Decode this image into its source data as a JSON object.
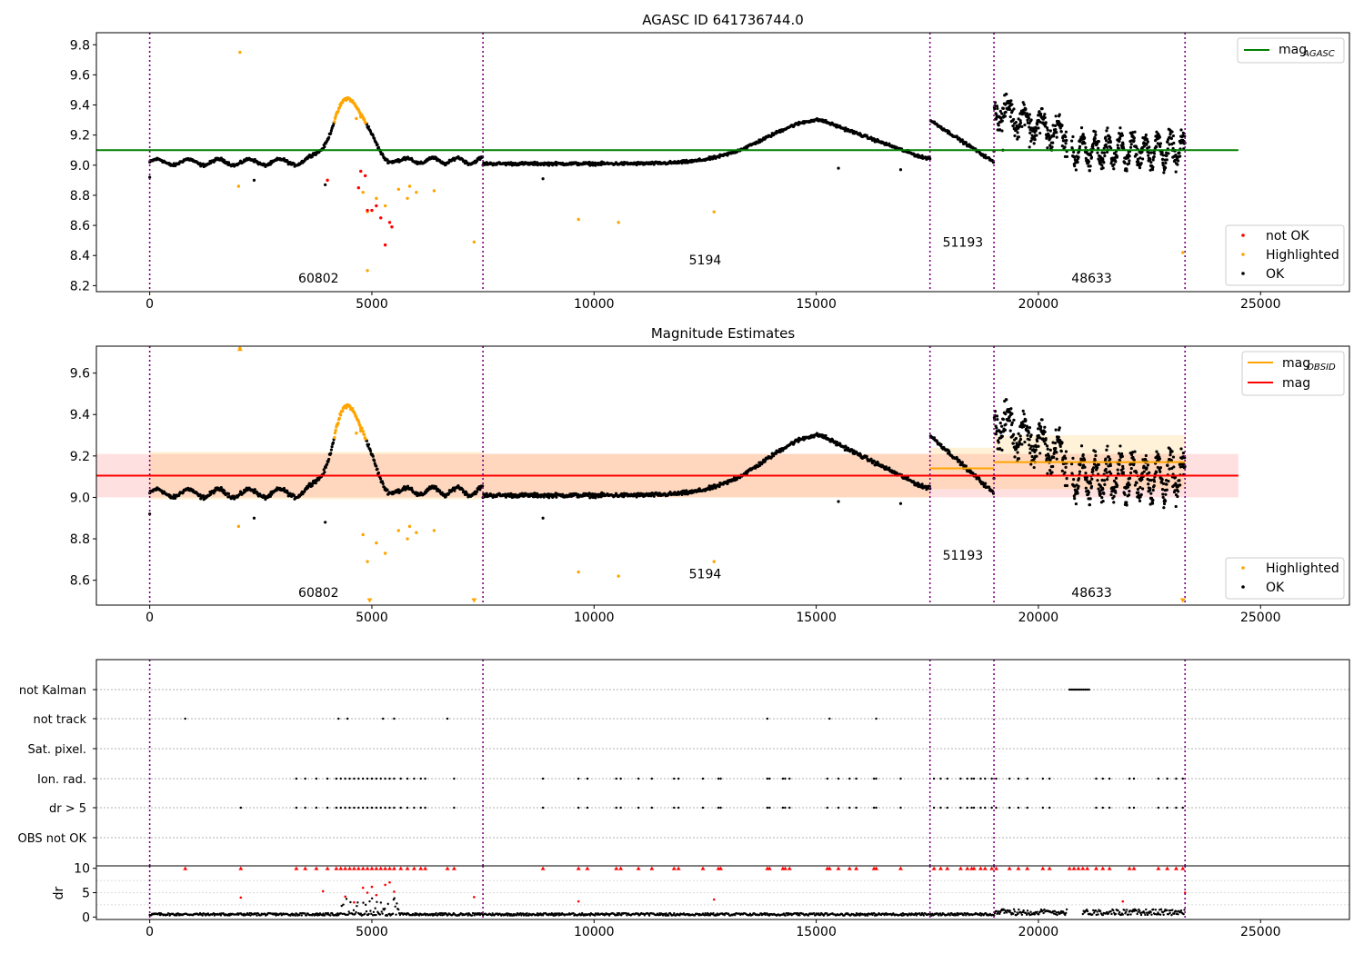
{
  "chart_data": [
    {
      "type": "scatter",
      "title": "AGASC ID 641736744.0",
      "xlim": [
        -1200,
        27000
      ],
      "ylim": [
        8.16,
        9.88
      ],
      "xticks": [
        "0",
        "5000",
        "10000",
        "15000",
        "20000",
        "25000"
      ],
      "xtick_values": [
        0,
        5000,
        10000,
        15000,
        20000,
        25000
      ],
      "yticks": [
        "8.2",
        "8.4",
        "8.6",
        "8.8",
        "9.0",
        "9.2",
        "9.4",
        "9.6",
        "9.8"
      ],
      "ytick_values": [
        8.2,
        8.4,
        8.6,
        8.8,
        9.0,
        9.2,
        9.4,
        9.6,
        9.8
      ],
      "obsid_boundaries": [
        0,
        7500,
        17560,
        19000,
        23300
      ],
      "obsid_labels": [
        {
          "text": "60802",
          "x": 3800,
          "y": 8.22
        },
        {
          "text": "5194",
          "x": 12500,
          "y": 8.34
        },
        {
          "text": "51193",
          "x": 18300,
          "y": 8.46
        },
        {
          "text": "48633",
          "x": 21200,
          "y": 8.22
        }
      ],
      "mag_agasc": 9.1,
      "mag_agasc_range": [
        -1200,
        24500
      ],
      "legend_lines": [
        {
          "label": "mag",
          "sub": "AGASC",
          "color": "#008000"
        }
      ],
      "legend_points": [
        {
          "label": "not OK",
          "color": "#ff0000"
        },
        {
          "label": "Highlighted",
          "color": "#ffa500"
        },
        {
          "label": "OK",
          "color": "#000000"
        }
      ],
      "legend_lines_position": "top-right",
      "legend_points_position": "bottom-right",
      "highlighted_points": [
        [
          2030,
          9.75
        ],
        [
          2000,
          8.86
        ],
        [
          4900,
          8.3
        ],
        [
          4800,
          8.82
        ],
        [
          4900,
          8.69
        ],
        [
          5100,
          8.78
        ],
        [
          5300,
          8.73
        ],
        [
          5600,
          8.84
        ],
        [
          5800,
          8.78
        ],
        [
          5850,
          8.86
        ],
        [
          6000,
          8.82
        ],
        [
          6400,
          8.83
        ],
        [
          7300,
          8.49
        ],
        [
          9650,
          8.64
        ],
        [
          10550,
          8.62
        ],
        [
          12700,
          8.69
        ],
        [
          23250,
          8.42
        ],
        [
          4650,
          9.31
        ],
        [
          4750,
          9.32
        ]
      ],
      "not_ok_points": [
        [
          4000,
          8.9
        ],
        [
          4700,
          8.85
        ],
        [
          4750,
          8.96
        ],
        [
          4850,
          8.93
        ],
        [
          4900,
          8.7
        ],
        [
          5000,
          8.7
        ],
        [
          5100,
          8.73
        ],
        [
          5200,
          8.65
        ],
        [
          5300,
          8.47
        ],
        [
          5400,
          8.62
        ],
        [
          5450,
          8.59
        ]
      ],
      "ok_outliers": [
        [
          0,
          8.92
        ],
        [
          2350,
          8.9
        ],
        [
          3950,
          8.87
        ],
        [
          8850,
          8.91
        ],
        [
          15500,
          8.98
        ],
        [
          16900,
          8.97
        ],
        [
          19200,
          9.1
        ],
        [
          19800,
          9.12
        ],
        [
          20300,
          9.1
        ]
      ]
    },
    {
      "type": "scatter",
      "title": "Magnitude Estimates",
      "xlim": [
        -1200,
        27000
      ],
      "ylim": [
        8.48,
        9.73
      ],
      "xticks": [
        "0",
        "5000",
        "10000",
        "15000",
        "20000",
        "25000"
      ],
      "xtick_values": [
        0,
        5000,
        10000,
        15000,
        20000,
        25000
      ],
      "yticks": [
        "8.6",
        "8.8",
        "9.0",
        "9.2",
        "9.4",
        "9.6"
      ],
      "ytick_values": [
        8.6,
        8.8,
        9.0,
        9.2,
        9.4,
        9.6
      ],
      "obsid_labels": [
        {
          "text": "60802",
          "x": 3800,
          "y": 8.52
        },
        {
          "text": "5194",
          "x": 12500,
          "y": 8.61
        },
        {
          "text": "51193",
          "x": 18300,
          "y": 8.7
        },
        {
          "text": "48633",
          "x": 21200,
          "y": 8.52
        }
      ],
      "mag": 9.105,
      "mag_band": [
        9.0,
        9.21
      ],
      "mag_range": [
        -1200,
        24500
      ],
      "mag_obsid_segments": [
        {
          "x0": 0,
          "x1": 7500,
          "mag": 9.105,
          "band": [
            8.99,
            9.22
          ]
        },
        {
          "x0": 7500,
          "x1": 17560,
          "mag": 9.105,
          "band": [
            9.0,
            9.21
          ]
        },
        {
          "x0": 17560,
          "x1": 19000,
          "mag": 9.14,
          "band": [
            9.04,
            9.24
          ]
        },
        {
          "x0": 19000,
          "x1": 23300,
          "mag": 9.17,
          "band": [
            9.04,
            9.3
          ]
        }
      ],
      "legend_lines": [
        {
          "label": "mag",
          "sub": "OBSID",
          "color": "#ffa500"
        },
        {
          "label": "mag",
          "sub": "",
          "color": "#ff0000"
        }
      ],
      "legend_points": [
        {
          "label": "Highlighted",
          "color": "#ffa500"
        },
        {
          "label": "OK",
          "color": "#000000"
        }
      ],
      "legend_lines_position": "top-right",
      "legend_points_position": "bottom-right",
      "highlighted_points": [
        [
          2030,
          9.72
        ],
        [
          2000,
          8.86
        ],
        [
          4800,
          8.82
        ],
        [
          4900,
          8.69
        ],
        [
          5100,
          8.78
        ],
        [
          5300,
          8.73
        ],
        [
          5600,
          8.84
        ],
        [
          5800,
          8.8
        ],
        [
          5850,
          8.86
        ],
        [
          6000,
          8.83
        ],
        [
          6400,
          8.84
        ],
        [
          9650,
          8.64
        ],
        [
          10550,
          8.62
        ],
        [
          12700,
          8.69
        ],
        [
          4650,
          9.31
        ],
        [
          4750,
          9.32
        ]
      ],
      "off_scale_markers": [
        [
          4950,
          8.5
        ],
        [
          7300,
          8.5
        ],
        [
          23250,
          8.5
        ],
        [
          2030,
          9.72
        ]
      ],
      "ok_outliers": [
        [
          0,
          8.92
        ],
        [
          2350,
          8.9
        ],
        [
          3950,
          8.88
        ],
        [
          8850,
          8.9
        ],
        [
          15500,
          8.98
        ],
        [
          16900,
          8.97
        ]
      ]
    },
    {
      "type": "scatter",
      "title": "",
      "xlim": [
        -1200,
        27000
      ],
      "categories": [
        "not Kalman",
        "not track",
        "Sat. pixel.",
        "Ion. rad.",
        "dr > 5",
        "OBS not OK"
      ],
      "flags": {
        "not Kalman": [
          [
            20700,
            21150
          ]
        ],
        "not track": [
          800,
          4250,
          4450,
          5250,
          5500,
          6700,
          13900,
          15300,
          16350
        ],
        "Sat. pixel.": [],
        "Ion. rad.": [
          3300,
          3500,
          3750,
          4000,
          4200,
          4300,
          4400,
          4500,
          4600,
          4700,
          4800,
          4900,
          5000,
          5100,
          5200,
          5300,
          5400,
          5500,
          5650,
          5800,
          5950,
          6100,
          6200,
          6850,
          8850,
          9650,
          9850,
          10500,
          10600,
          11000,
          11300,
          11800,
          11900,
          12450,
          12800,
          12850,
          13900,
          13950,
          14250,
          14300,
          14400,
          15250,
          15500,
          15750,
          15900,
          16300,
          16350,
          16900,
          17650,
          17800,
          17950,
          18250,
          18400,
          18500,
          18550,
          18700,
          18800,
          18950,
          19050,
          19350,
          19550,
          19750,
          20100,
          20250,
          21300,
          21450,
          21600,
          22050,
          22150,
          22700,
          22900,
          23100,
          23250
        ],
        "dr > 5": [
          2050,
          3300,
          3500,
          3750,
          4000,
          4200,
          4300,
          4400,
          4500,
          4600,
          4700,
          4800,
          4900,
          5000,
          5100,
          5200,
          5300,
          5400,
          5500,
          5650,
          5800,
          5950,
          6100,
          6200,
          6850,
          8850,
          9650,
          9850,
          10500,
          10600,
          11000,
          11300,
          11800,
          11900,
          12450,
          12800,
          12850,
          13900,
          13950,
          14250,
          14300,
          14400,
          15250,
          15500,
          15750,
          15900,
          16300,
          16350,
          16900,
          17650,
          17800,
          17950,
          18250,
          18400,
          18500,
          18550,
          18700,
          18800,
          18950,
          19050,
          19350,
          19550,
          19750,
          20100,
          20250,
          21300,
          21450,
          21600,
          22050,
          22150,
          22700,
          22900,
          23100,
          23250
        ],
        "OBS not OK": []
      }
    },
    {
      "type": "scatter",
      "title": "",
      "ylabel": "dr",
      "xlim": [
        -1200,
        27000
      ],
      "ylim": [
        -0.5,
        10.5
      ],
      "xticks": [
        "0",
        "5000",
        "10000",
        "15000",
        "20000",
        "25000"
      ],
      "xtick_values": [
        0,
        5000,
        10000,
        15000,
        20000,
        25000
      ],
      "yticks": [
        "0",
        "5",
        "10"
      ],
      "ytick_values": [
        0,
        5,
        10
      ],
      "clipped_at_10": [
        800,
        2050,
        3300,
        3500,
        3750,
        4000,
        4200,
        4300,
        4400,
        4500,
        4600,
        4700,
        4800,
        4900,
        5000,
        5100,
        5200,
        5300,
        5400,
        5500,
        5650,
        5800,
        5950,
        6100,
        6200,
        6700,
        6850,
        8850,
        9650,
        9850,
        10500,
        10600,
        11000,
        11300,
        11800,
        11900,
        12450,
        12800,
        12850,
        13900,
        13950,
        14250,
        14300,
        14400,
        15250,
        15300,
        15500,
        15750,
        15900,
        16300,
        16350,
        16900,
        17650,
        17800,
        17950,
        18250,
        18400,
        18500,
        18550,
        18700,
        18800,
        18950,
        19050,
        19350,
        19550,
        19750,
        20100,
        20250,
        20700,
        20800,
        20900,
        21000,
        21100,
        21300,
        21450,
        21600,
        22050,
        22150,
        22700,
        22900,
        23100,
        23250
      ],
      "red_points": [
        [
          2050,
          4.0
        ],
        [
          3900,
          5.3
        ],
        [
          4400,
          4.2
        ],
        [
          4600,
          3.0
        ],
        [
          4800,
          6.0
        ],
        [
          4900,
          5.0
        ],
        [
          5000,
          6.2
        ],
        [
          5100,
          4.5
        ],
        [
          5300,
          6.6
        ],
        [
          5400,
          7.1
        ],
        [
          5500,
          5.2
        ],
        [
          7300,
          4.1
        ],
        [
          9650,
          3.2
        ],
        [
          12700,
          3.6
        ],
        [
          21900,
          3.2
        ],
        [
          23300,
          5.0
        ]
      ]
    }
  ]
}
